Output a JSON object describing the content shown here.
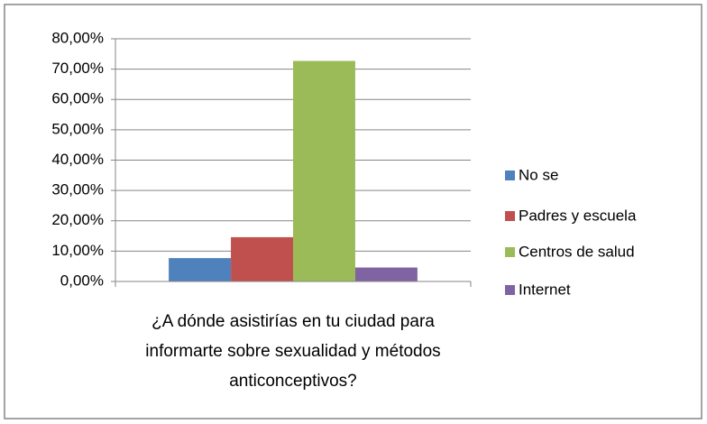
{
  "chart_data": {
    "type": "bar",
    "categories": [
      "¿A dónde asistirías en tu ciudad para informarte sobre sexualidad y métodos anticonceptivos?"
    ],
    "series": [
      {
        "name": "No se",
        "color": "#4f81bd",
        "values": [
          7.7
        ]
      },
      {
        "name": "Padres y escuela",
        "color": "#c0504d",
        "values": [
          14.6
        ]
      },
      {
        "name": "Centros de salud",
        "color": "#9bbb59",
        "values": [
          72.7
        ]
      },
      {
        "name": "Internet",
        "color": "#8064a2",
        "values": [
          4.6
        ]
      }
    ],
    "ylim": [
      0,
      80
    ],
    "yticks": [
      {
        "value": 0,
        "label": "0,00%"
      },
      {
        "value": 10,
        "label": "10,00%"
      },
      {
        "value": 20,
        "label": "20,00%"
      },
      {
        "value": 30,
        "label": "30,00%"
      },
      {
        "value": 40,
        "label": "40,00%"
      },
      {
        "value": 50,
        "label": "50,00%"
      },
      {
        "value": 60,
        "label": "60,00%"
      },
      {
        "value": 70,
        "label": "70,00%"
      },
      {
        "value": 80,
        "label": "80,00%"
      }
    ],
    "grid": true,
    "legend": "right"
  }
}
